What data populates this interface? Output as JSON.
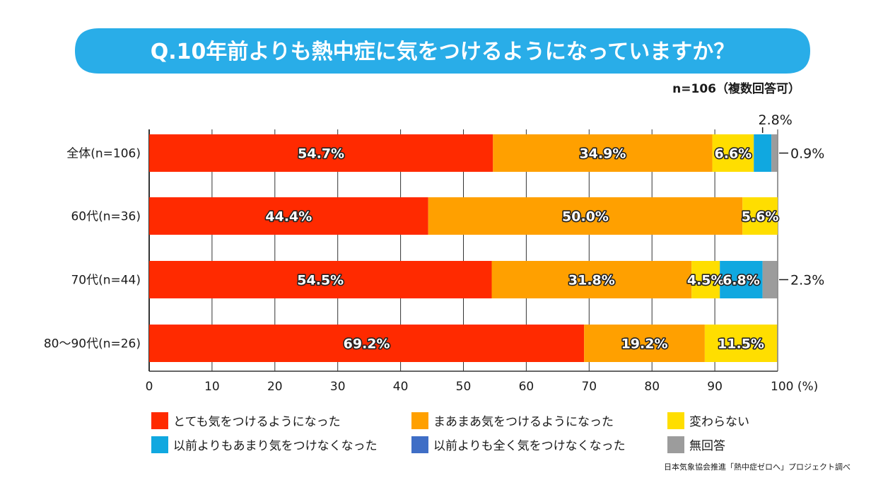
{
  "title": "Q.10年前よりも熱中症に気をつけるようになっていますか？",
  "note": "n=106（複数回答可）",
  "source": "日本気象協会推進「熱中症ゼロへ」プロジェクト調べ",
  "colors": {
    "title_bg": "#29ade8",
    "grid": "#333333"
  },
  "chart_data": {
    "type": "bar",
    "orientation": "horizontal",
    "stacked": true,
    "title": "Q.10年前よりも熱中症に気をつけるようになっていますか？",
    "xlim": [
      0,
      100
    ],
    "xticks": [
      0,
      10,
      20,
      30,
      40,
      50,
      60,
      70,
      80,
      90,
      100
    ],
    "x_unit_label": "(%)",
    "grid": true,
    "legend_position": "bottom",
    "categories": [
      "全体(n=106)",
      "60代(n=36)",
      "70代(n=44)",
      "80〜90代(n=26)"
    ],
    "series": [
      {
        "name": "とても気をつけるようになった",
        "color": "#ff2a00",
        "values": [
          54.7,
          44.4,
          54.5,
          69.2
        ]
      },
      {
        "name": "まあまあ気をつけるようになった",
        "color": "#ffa000",
        "values": [
          34.9,
          50.0,
          31.8,
          19.2
        ]
      },
      {
        "name": "変わらない",
        "color": "#ffde00",
        "values": [
          6.6,
          5.6,
          4.5,
          11.5
        ]
      },
      {
        "name": "以前よりもあまり気をつけなくなった",
        "color": "#10a8e0",
        "values": [
          2.8,
          0,
          6.8,
          0
        ]
      },
      {
        "name": "以前よりも全く気をつけなくなった",
        "color": "#3f6ec6",
        "values": [
          0,
          0,
          0,
          0
        ]
      },
      {
        "name": "無回答",
        "color": "#9c9c9c",
        "values": [
          0.9,
          0,
          2.3,
          0
        ]
      }
    ],
    "labels": [
      [
        "54.7%",
        "34.9%",
        "6.6%",
        "2.8%",
        "",
        "0.9%"
      ],
      [
        "44.4%",
        "50.0%",
        "5.6%",
        "",
        "",
        ""
      ],
      [
        "54.5%",
        "31.8%",
        "4.5%",
        "6.8%",
        "",
        "2.3%"
      ],
      [
        "69.2%",
        "19.2%",
        "11.5%",
        "",
        "",
        ""
      ]
    ]
  }
}
